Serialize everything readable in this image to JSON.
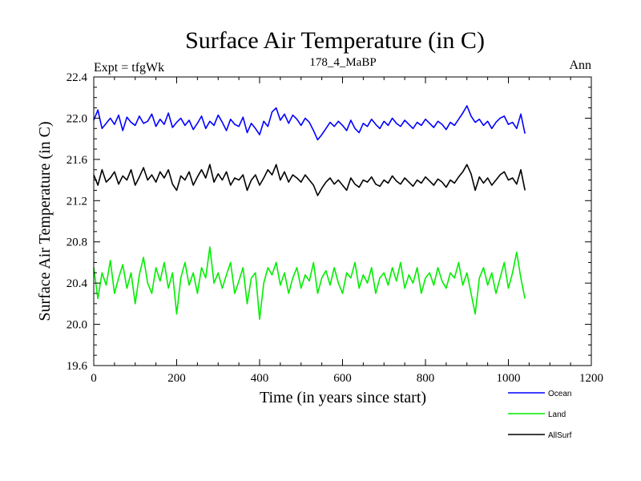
{
  "chart_data": {
    "type": "line",
    "title": "Surface Air Temperature (in C)",
    "subtitle": "178_4_MaBP",
    "left_label": "Expt = tfgWk",
    "right_label": "Ann",
    "xlabel": "Time (in years since start)",
    "ylabel": "Surface Air Temperature (in C)",
    "xlim": [
      0,
      1200
    ],
    "ylim": [
      19.6,
      22.4
    ],
    "xticks": [
      0,
      200,
      400,
      600,
      800,
      1000,
      1200
    ],
    "xtick_labels": [
      "0",
      "200",
      "400",
      "600",
      "800",
      "1000",
      "1200"
    ],
    "yticks": [
      19.6,
      20.0,
      20.4,
      20.8,
      21.2,
      21.6,
      22.0,
      22.4
    ],
    "ytick_labels": [
      "19.6",
      "20.0",
      "20.4",
      "20.8",
      "21.2",
      "21.6",
      "22.0",
      "22.4"
    ],
    "x_start": 0,
    "x_step": 10,
    "series": [
      {
        "name": "Ocean",
        "color": "#0000ff",
        "values": [
          21.98,
          22.08,
          21.9,
          21.95,
          22.0,
          21.94,
          22.03,
          21.88,
          22.01,
          21.96,
          21.93,
          22.02,
          21.95,
          21.97,
          22.04,
          21.92,
          21.99,
          21.94,
          22.05,
          21.91,
          21.96,
          22.0,
          21.93,
          21.98,
          21.89,
          21.95,
          22.02,
          21.9,
          21.97,
          21.93,
          22.03,
          21.96,
          21.88,
          21.99,
          21.94,
          21.92,
          22.01,
          21.86,
          21.95,
          21.9,
          21.84,
          21.97,
          21.92,
          22.06,
          22.1,
          21.98,
          22.04,
          21.95,
          22.03,
          21.99,
          21.93,
          22.0,
          21.96,
          21.88,
          21.79,
          21.84,
          21.9,
          21.96,
          21.92,
          21.97,
          21.93,
          21.88,
          21.98,
          21.9,
          21.86,
          21.95,
          21.92,
          21.99,
          21.94,
          21.9,
          21.97,
          21.93,
          22.0,
          21.95,
          21.92,
          21.98,
          21.94,
          21.9,
          21.96,
          21.93,
          21.99,
          21.95,
          21.91,
          21.97,
          21.94,
          21.89,
          21.96,
          21.93,
          21.99,
          22.05,
          22.12,
          22.02,
          21.96,
          21.99,
          21.93,
          21.97,
          21.9,
          21.96,
          22.0,
          22.02,
          21.94,
          21.96,
          21.9,
          22.04,
          21.85
        ]
      },
      {
        "name": "Land",
        "color": "#00ee00",
        "values": [
          20.55,
          20.25,
          20.5,
          20.38,
          20.62,
          20.3,
          20.45,
          20.58,
          20.35,
          20.5,
          20.2,
          20.48,
          20.65,
          20.4,
          20.3,
          20.55,
          20.42,
          20.6,
          20.35,
          20.5,
          20.1,
          20.45,
          20.6,
          20.38,
          20.5,
          20.3,
          20.55,
          20.45,
          20.75,
          20.4,
          20.5,
          20.35,
          20.48,
          20.6,
          20.3,
          20.42,
          20.55,
          20.2,
          20.45,
          20.5,
          20.05,
          20.4,
          20.55,
          20.48,
          20.6,
          20.38,
          20.5,
          20.3,
          20.45,
          20.55,
          20.35,
          20.48,
          20.42,
          20.6,
          20.3,
          20.45,
          20.52,
          20.38,
          20.55,
          20.4,
          20.3,
          20.5,
          20.45,
          20.6,
          20.35,
          20.48,
          20.4,
          20.55,
          20.3,
          20.45,
          20.5,
          20.38,
          20.55,
          20.42,
          20.6,
          20.35,
          20.48,
          20.4,
          20.55,
          20.3,
          20.45,
          20.5,
          20.38,
          20.55,
          20.42,
          20.35,
          20.5,
          20.45,
          20.6,
          20.38,
          20.5,
          20.3,
          20.1,
          20.45,
          20.55,
          20.38,
          20.5,
          20.3,
          20.45,
          20.6,
          20.35,
          20.5,
          20.7,
          20.45,
          20.25
        ]
      },
      {
        "name": "AllSurf",
        "color": "#000000",
        "values": [
          21.45,
          21.35,
          21.5,
          21.38,
          21.42,
          21.48,
          21.36,
          21.44,
          21.4,
          21.5,
          21.35,
          21.43,
          21.52,
          21.4,
          21.45,
          21.38,
          21.48,
          21.42,
          21.5,
          21.36,
          21.3,
          21.44,
          21.4,
          21.48,
          21.35,
          21.43,
          21.5,
          21.42,
          21.55,
          21.38,
          21.46,
          21.4,
          21.48,
          21.35,
          21.42,
          21.4,
          21.45,
          21.3,
          21.4,
          21.45,
          21.35,
          21.42,
          21.5,
          21.45,
          21.55,
          21.4,
          21.48,
          21.38,
          21.45,
          21.42,
          21.38,
          21.45,
          21.4,
          21.35,
          21.25,
          21.32,
          21.38,
          21.42,
          21.36,
          21.4,
          21.35,
          21.3,
          21.42,
          21.36,
          21.33,
          21.4,
          21.38,
          21.43,
          21.36,
          21.34,
          21.4,
          21.37,
          21.44,
          21.39,
          21.36,
          21.42,
          21.38,
          21.34,
          21.4,
          21.37,
          21.43,
          21.39,
          21.35,
          21.41,
          21.38,
          21.33,
          21.4,
          21.37,
          21.43,
          21.48,
          21.55,
          21.46,
          21.3,
          21.43,
          21.37,
          21.42,
          21.35,
          21.4,
          21.45,
          21.48,
          21.4,
          21.42,
          21.36,
          21.5,
          21.3
        ]
      }
    ],
    "legend": {
      "position": "bottom-right",
      "entries": [
        "Ocean",
        "Land",
        "AllSurf"
      ]
    }
  }
}
